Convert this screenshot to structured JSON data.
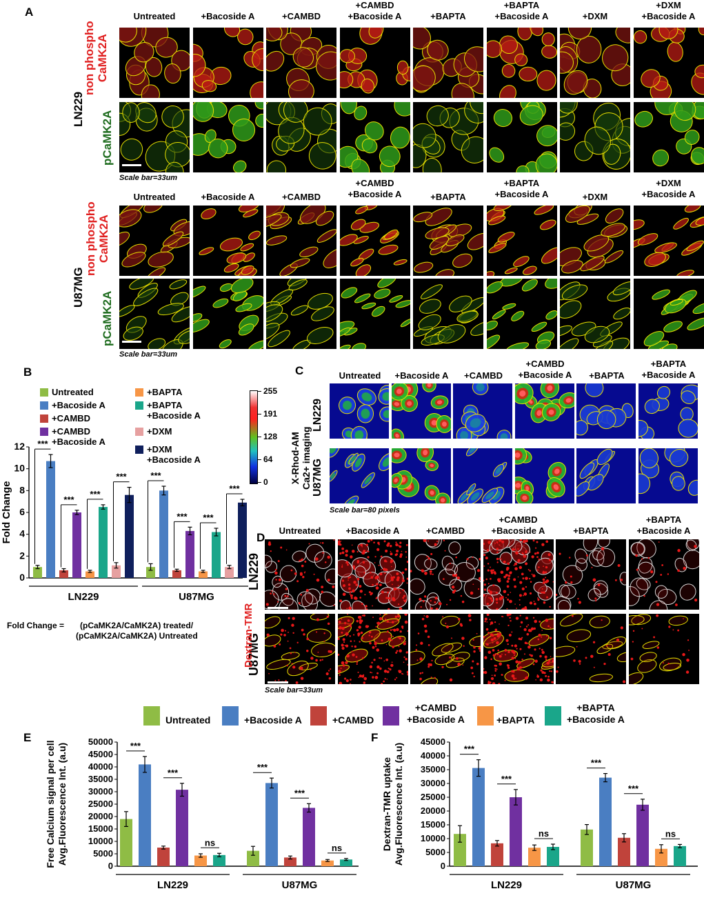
{
  "panels": {
    "A": {
      "label": "A",
      "columns": [
        "Untreated",
        "+Bacoside A",
        "+CAMBD",
        "+CAMBD +Bacoside A",
        "+BAPTA",
        "+BAPTA +Bacoside A",
        "+DXM",
        "+DXM +Bacoside A"
      ],
      "lines": [
        "LN229",
        "U87MG"
      ],
      "row_red": "non phospho CaMK2A",
      "row_green": "pCaMK2A",
      "scale": "Scale bar=33um"
    },
    "C": {
      "label": "C",
      "columns": [
        "Untreated",
        "+Bacoside A",
        "+CAMBD",
        "+CAMBD +Bacoside A",
        "+BAPTA",
        "+BAPTA +Bacoside A"
      ],
      "lines": [
        "LN229",
        "U87MG"
      ],
      "side": "X-Rhod-AM Ca2+ imaging",
      "colorbar_ticks": [
        "255",
        "191",
        "128",
        "64",
        "0"
      ],
      "scale": "Scale bar=80 pixels"
    },
    "D": {
      "label": "D",
      "columns": [
        "Untreated",
        "+Bacoside A",
        "+CAMBD",
        "+CAMBD +Bacoside A",
        "+BAPTA",
        "+BAPTA +Bacoside A"
      ],
      "lines": [
        "LN229",
        "U87MG"
      ],
      "side": "Dextran-TMR",
      "scale": "Scale bar=33um"
    },
    "B": {
      "label": "B",
      "formula_left": "Fold Change  =",
      "formula_num": "(pCaMK2A/CaMK2A) treated/",
      "formula_den": "(pCaMK2A/CaMK2A) Untreated"
    },
    "E": {
      "label": "E"
    },
    "F": {
      "label": "F"
    }
  },
  "legend_6": {
    "items": [
      "Untreated",
      "+Bacoside A",
      "+CAMBD",
      "+CAMBD +Bacoside A",
      "+BAPTA",
      "+BAPTA +Bacoside A"
    ]
  },
  "colors": {
    "untreated": "#8fbc45",
    "bacoside": "#4a7ec2",
    "cambd": "#c0433b",
    "cambd_bac": "#7030a0",
    "bapta": "#f79646",
    "bapta_bac": "#1aa68a",
    "dxm": "#e6a0a0",
    "dxm_bac": "#0f1f5c"
  },
  "chart_data": [
    {
      "id": "B",
      "type": "bar",
      "ylabel": "Fold Change",
      "ylim": [
        0,
        12
      ],
      "yticks": [
        0,
        2,
        4,
        6,
        8,
        10,
        12
      ],
      "groups": [
        "LN229",
        "U87MG"
      ],
      "series": [
        {
          "name": "Untreated",
          "values": [
            1.0,
            1.0
          ],
          "err": [
            0.15,
            0.3
          ]
        },
        {
          "name": "+Bacoside A",
          "values": [
            10.7,
            8.0
          ],
          "err": [
            0.6,
            0.4
          ]
        },
        {
          "name": "+CAMBD",
          "values": [
            0.7,
            0.7
          ],
          "err": [
            0.15,
            0.1
          ]
        },
        {
          "name": "+CAMBD +Bacoside A",
          "values": [
            6.0,
            4.3
          ],
          "err": [
            0.2,
            0.35
          ]
        },
        {
          "name": "+BAPTA",
          "values": [
            0.6,
            0.6
          ],
          "err": [
            0.1,
            0.1
          ]
        },
        {
          "name": "+BAPTA +Bacoside A",
          "values": [
            6.5,
            4.2
          ],
          "err": [
            0.2,
            0.35
          ]
        },
        {
          "name": "+DXM",
          "values": [
            1.15,
            1.0
          ],
          "err": [
            0.25,
            0.15
          ]
        },
        {
          "name": "+DXM +Bacoside A",
          "values": [
            7.6,
            6.9
          ],
          "err": [
            0.7,
            0.3
          ]
        }
      ],
      "sig": [
        "***",
        "***",
        "***",
        "***"
      ]
    },
    {
      "id": "E",
      "type": "bar",
      "ylabel_1": "Free Calcium signal per cell",
      "ylabel_2": "Avg.Fluorescence Int. (a.u)",
      "ylim": [
        0,
        50000
      ],
      "yticks": [
        0,
        5000,
        10000,
        15000,
        20000,
        25000,
        30000,
        35000,
        40000,
        45000,
        50000
      ],
      "groups": [
        "LN229",
        "U87MG"
      ],
      "series": [
        {
          "name": "Untreated",
          "values": [
            19000,
            6200
          ],
          "err": [
            3000,
            1800
          ]
        },
        {
          "name": "+Bacoside A",
          "values": [
            41000,
            33500
          ],
          "err": [
            3200,
            2000
          ]
        },
        {
          "name": "+CAMBD",
          "values": [
            7500,
            3500
          ],
          "err": [
            600,
            600
          ]
        },
        {
          "name": "+CAMBD +Bacoside A",
          "values": [
            30800,
            23500
          ],
          "err": [
            2600,
            1700
          ]
        },
        {
          "name": "+BAPTA",
          "values": [
            4300,
            2300
          ],
          "err": [
            700,
            400
          ]
        },
        {
          "name": "+BAPTA +Bacoside A",
          "values": [
            4500,
            2700
          ],
          "err": [
            700,
            400
          ]
        }
      ],
      "sig": [
        "***",
        "***",
        "ns"
      ]
    },
    {
      "id": "F",
      "type": "bar",
      "ylabel_1": "Dextran-TMR uptake",
      "ylabel_2": "Avg.Fluorescence Int. (a.u)",
      "ylim": [
        0,
        45000
      ],
      "yticks": [
        0,
        5000,
        10000,
        15000,
        20000,
        25000,
        30000,
        35000,
        40000,
        45000
      ],
      "groups": [
        "LN229",
        "U87MG"
      ],
      "series": [
        {
          "name": "Untreated",
          "values": [
            11700,
            13300
          ],
          "err": [
            3000,
            1800
          ]
        },
        {
          "name": "+Bacoside A",
          "values": [
            35600,
            32100
          ],
          "err": [
            3000,
            1500
          ]
        },
        {
          "name": "+CAMBD",
          "values": [
            8300,
            10300
          ],
          "err": [
            1000,
            1500
          ]
        },
        {
          "name": "+CAMBD +Bacoside A",
          "values": [
            25000,
            22300
          ],
          "err": [
            2800,
            2000
          ]
        },
        {
          "name": "+BAPTA",
          "values": [
            6700,
            6300
          ],
          "err": [
            1000,
            1500
          ]
        },
        {
          "name": "+BAPTA +Bacoside A",
          "values": [
            7000,
            7300
          ],
          "err": [
            1000,
            600
          ]
        }
      ],
      "sig": [
        "***",
        "***",
        "ns"
      ]
    }
  ]
}
